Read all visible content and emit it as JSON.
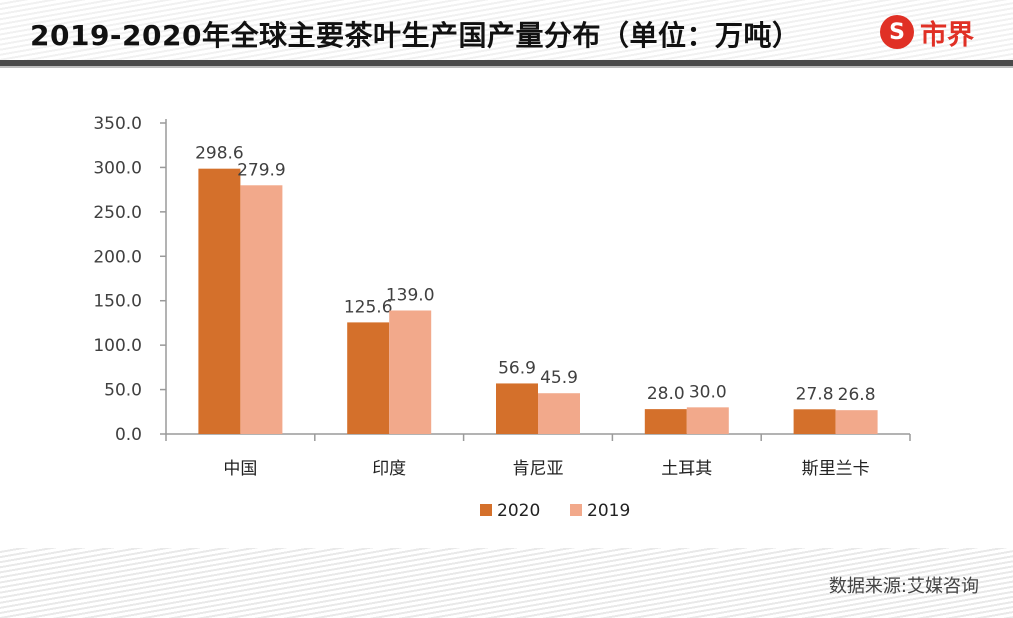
{
  "title": "2019-2020年全球主要茶叶生产国产量分布（单位：万吨）",
  "logo": {
    "mark": "S",
    "text": "市界"
  },
  "source": "数据来源:艾媒咨询",
  "colors": {
    "series_2020": "#d4702b",
    "series_2019": "#f2a98b",
    "axis": "#9a9a9a",
    "text": "#404040",
    "brand": "#e03025"
  },
  "chart_data": {
    "type": "bar",
    "title": "",
    "xlabel": "",
    "ylabel": "",
    "categories": [
      "中国",
      "印度",
      "肯尼亚",
      "土耳其",
      "斯里兰卡"
    ],
    "series": [
      {
        "name": "2020",
        "values": [
          298.6,
          125.6,
          56.9,
          28.0,
          27.8
        ],
        "labels": [
          "298.6",
          "125.6",
          "56.9",
          "28.0",
          "27.8"
        ]
      },
      {
        "name": "2019",
        "values": [
          279.9,
          139.0,
          45.9,
          30.0,
          26.8
        ],
        "labels": [
          "279.9",
          "139.0",
          "45.9",
          "30.0",
          "26.8"
        ]
      }
    ],
    "ylim": [
      0,
      350
    ],
    "yticks": [
      "0.0",
      "50.0",
      "100.0",
      "150.0",
      "200.0",
      "250.0",
      "300.0",
      "350.0"
    ],
    "grid": false,
    "legend_position": "bottom"
  }
}
